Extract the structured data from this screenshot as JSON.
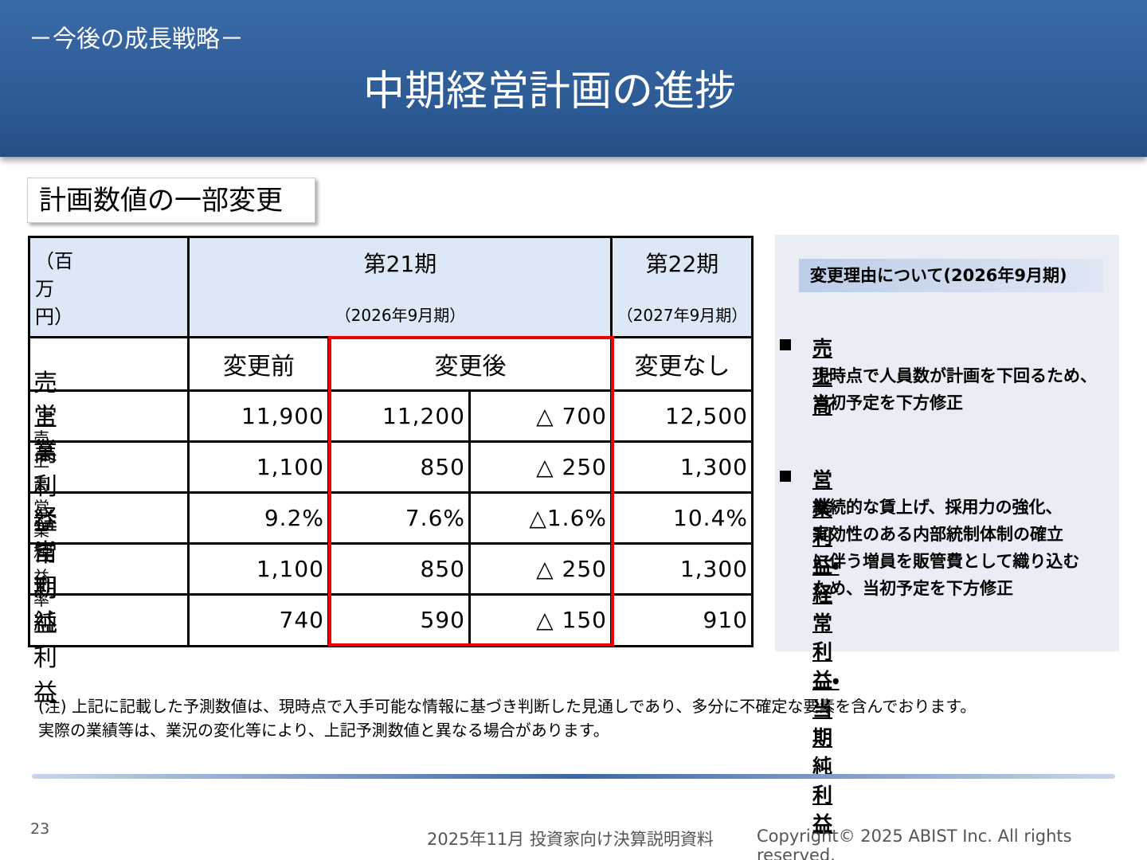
{
  "header": {
    "subtitle": "－今後の成長戦略－",
    "title": "中期経営計画の進捗"
  },
  "section_label": "計画数値の一部変更",
  "table": {
    "unit": "（百万円）",
    "periods": [
      {
        "name": "第21期",
        "sub": "（2026年9月期）"
      },
      {
        "name": "第22期",
        "sub": "（2027年9月期）"
      }
    ],
    "columns": [
      "変更前",
      "変更後",
      "変更なし"
    ],
    "rows": [
      [
        "売上高",
        "11,900",
        "11,200",
        "△ 700",
        "12,500"
      ],
      [
        "営業利益",
        "1,100",
        "850",
        "△ 250",
        "1,300"
      ],
      [
        "売上高営業利益率",
        "9.2%",
        "7.6%",
        "△1.6%",
        "10.4%"
      ],
      [
        "経常利益",
        "1,100",
        "850",
        "△ 250",
        "1,300"
      ],
      [
        "当期純利益",
        "740",
        "590",
        "△ 150",
        "910"
      ]
    ]
  },
  "panel": {
    "heading": "変更理由について(2026年9月期)",
    "items": [
      {
        "title": "売上高",
        "lines": [
          "現時点で人員数が計画を下回るため、",
          "当初予定を下方修正"
        ]
      },
      {
        "title": "営業利益・経常利益・当期純利益",
        "lines": [
          "継続的な賃上げ、採用力の強化、",
          "実効性のある内部統制体制の確立",
          "に伴う増員を販管費として織り込む",
          "ため、当初予定を下方修正"
        ]
      }
    ]
  },
  "notes": [
    "(注) 上記に記載した予測数値は、現時点で入手可能な情報に基づき判断した見通しであり、多分に不確定な要素を含んでおります。",
    "実際の業績等は、業況の変化等により、上記予測数値と異なる場合があります。"
  ],
  "footer": {
    "page": "23",
    "doc": "2025年11月 投資家向け決算説明資料",
    "copyright": "Copyright© 2025 ABIST Inc. All rights reserved."
  }
}
